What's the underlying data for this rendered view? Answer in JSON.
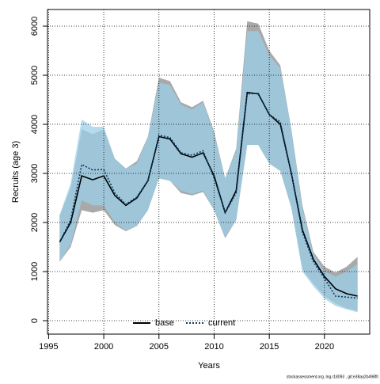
{
  "chart_data": {
    "type": "line",
    "x_label": "Years",
    "y_label": "Recruits (age 3)",
    "footer": "stockassessment.org, lng.r18093 , git:e38aa2b498f0",
    "x": [
      1996,
      1997,
      1998,
      1999,
      2000,
      2001,
      2002,
      2003,
      2004,
      2005,
      2006,
      2007,
      2008,
      2009,
      2010,
      2011,
      2012,
      2013,
      2014,
      2015,
      2016,
      2017,
      2018,
      2019,
      2020,
      2021,
      2022,
      2023
    ],
    "series": [
      {
        "name": "base",
        "color": "#000000",
        "dash": "solid",
        "band_color": "#a0a0a0",
        "values": [
          1600,
          2000,
          2950,
          2870,
          2950,
          2550,
          2350,
          2500,
          2850,
          3750,
          3700,
          3400,
          3330,
          3420,
          2950,
          2200,
          2650,
          4650,
          4620,
          4200,
          4000,
          3000,
          1850,
          1250,
          900,
          650,
          550,
          500
        ],
        "lower": [
          1200,
          1500,
          2250,
          2200,
          2250,
          1950,
          1820,
          1930,
          2250,
          2900,
          2850,
          2600,
          2550,
          2620,
          2250,
          1680,
          2050,
          3580,
          3580,
          3200,
          3050,
          2300,
          1050,
          750,
          500,
          350,
          250,
          200
        ],
        "upper": [
          2150,
          2700,
          3900,
          3800,
          3900,
          3300,
          3100,
          3250,
          3750,
          4950,
          4880,
          4450,
          4350,
          4480,
          3850,
          2900,
          3500,
          6100,
          6050,
          5500,
          5200,
          3900,
          2350,
          1400,
          1100,
          980,
          1100,
          1300
        ]
      },
      {
        "name": "current",
        "color": "#0b3d66",
        "dash": "dotted",
        "band_color": "#9ccfe8",
        "values": [
          1600,
          2050,
          3180,
          3070,
          3080,
          2600,
          2370,
          2520,
          2850,
          3780,
          3730,
          3420,
          3370,
          3460,
          2900,
          2200,
          2600,
          4620,
          4630,
          4200,
          4050,
          3000,
          1800,
          1200,
          860,
          500,
          480,
          460
        ],
        "lower": [
          1200,
          1550,
          2450,
          2350,
          2350,
          2000,
          1830,
          1930,
          2250,
          2900,
          2850,
          2650,
          2580,
          2650,
          2250,
          1700,
          2050,
          3580,
          3580,
          3200,
          3050,
          2300,
          1000,
          700,
          450,
          300,
          230,
          170
        ],
        "upper": [
          2150,
          2800,
          4100,
          3950,
          3950,
          3300,
          3100,
          3200,
          3750,
          4850,
          4800,
          4400,
          4300,
          4450,
          3800,
          2900,
          3450,
          5900,
          5900,
          5400,
          5150,
          3900,
          2300,
          1350,
          1000,
          900,
          1000,
          1150
        ]
      }
    ],
    "xlim": [
      1994.9,
      2024.1
    ],
    "ylim": [
      -274,
      6339
    ],
    "xticks": [
      1995,
      2000,
      2005,
      2010,
      2015,
      2020
    ],
    "yticks": [
      0,
      1000,
      2000,
      3000,
      4000,
      5000,
      6000
    ],
    "grid": true,
    "legend": "bottom"
  }
}
